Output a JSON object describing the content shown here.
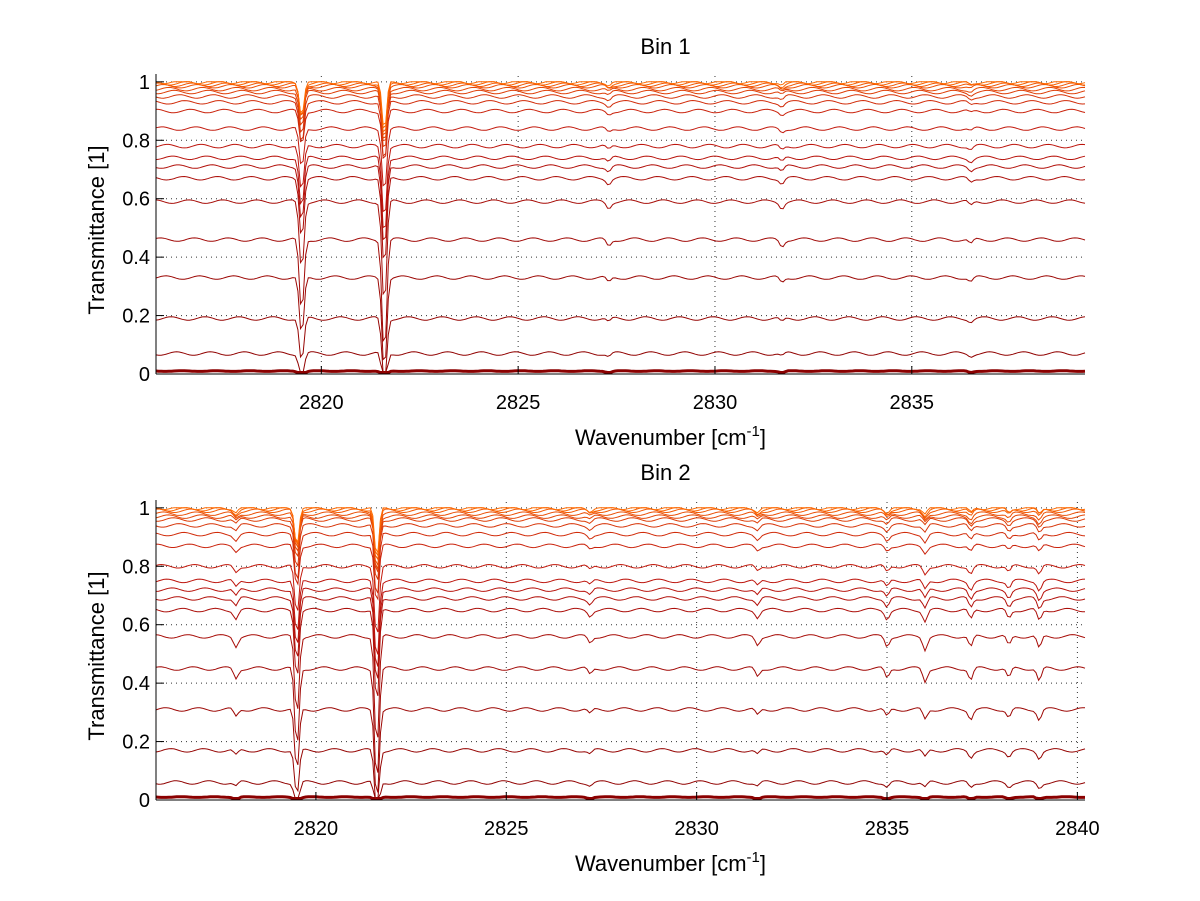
{
  "chart_data": [
    {
      "type": "line",
      "title": "Bin 1",
      "xlabel": "Wavenumber [cm",
      "xlabel_superscript": "-1",
      "xlabel_suffix": "]",
      "ylabel": "Transmittance [1]",
      "xlim": [
        2815.8,
        2839.4
      ],
      "ylim": [
        0,
        1.02
      ],
      "xticks": [
        "2820",
        "2825",
        "2830",
        "2835"
      ],
      "yticks": [
        "0",
        "0.2",
        "0.4",
        "0.6",
        "0.8",
        "1"
      ],
      "grid": "dotted",
      "legend": "none",
      "series": [
        {
          "values": [
            0.01
          ]
        },
        {
          "values": [
            0.07
          ]
        },
        {
          "values": [
            0.19
          ]
        },
        {
          "values": [
            0.33
          ]
        },
        {
          "values": [
            0.46
          ]
        },
        {
          "values": [
            0.59
          ]
        },
        {
          "values": [
            0.67
          ]
        },
        {
          "values": [
            0.71
          ]
        },
        {
          "values": [
            0.74
          ]
        },
        {
          "values": [
            0.78
          ]
        },
        {
          "values": [
            0.84
          ]
        },
        {
          "values": [
            0.9
          ]
        },
        {
          "values": [
            0.93
          ]
        },
        {
          "values": [
            0.95
          ]
        },
        {
          "values": [
            0.965
          ]
        },
        {
          "values": [
            0.975
          ]
        },
        {
          "values": [
            0.985
          ]
        },
        {
          "values": [
            0.99
          ]
        },
        {
          "values": [
            0.995
          ]
        },
        {
          "values": [
            1.0
          ]
        }
      ],
      "absorption_lines": [
        {
          "x": 2819.5,
          "depth": 0.45
        },
        {
          "x": 2821.6,
          "depth": 0.7
        },
        {
          "x": 2827.3,
          "depth": 0.04
        },
        {
          "x": 2831.7,
          "depth": 0.04
        },
        {
          "x": 2836.5,
          "depth": 0.03
        }
      ]
    },
    {
      "type": "line",
      "title": "Bin 2",
      "xlabel": "Wavenumber [cm",
      "xlabel_superscript": "-1",
      "xlabel_suffix": "]",
      "ylabel": "Transmittance [1]",
      "xlim": [
        2815.8,
        2840.2
      ],
      "ylim": [
        0,
        1.02
      ],
      "xticks": [
        "2820",
        "2825",
        "2830",
        "2835",
        "2840"
      ],
      "yticks": [
        "0",
        "0.2",
        "0.4",
        "0.6",
        "0.8",
        "1"
      ],
      "grid": "dotted",
      "legend": "none",
      "series": [
        {
          "values": [
            0.01
          ]
        },
        {
          "values": [
            0.06
          ]
        },
        {
          "values": [
            0.17
          ]
        },
        {
          "values": [
            0.31
          ]
        },
        {
          "values": [
            0.45
          ]
        },
        {
          "values": [
            0.56
          ]
        },
        {
          "values": [
            0.65
          ]
        },
        {
          "values": [
            0.69
          ]
        },
        {
          "values": [
            0.72
          ]
        },
        {
          "values": [
            0.75
          ]
        },
        {
          "values": [
            0.8
          ]
        },
        {
          "values": [
            0.87
          ]
        },
        {
          "values": [
            0.91
          ]
        },
        {
          "values": [
            0.94
          ]
        },
        {
          "values": [
            0.96
          ]
        },
        {
          "values": [
            0.97
          ]
        },
        {
          "values": [
            0.98
          ]
        },
        {
          "values": [
            0.99
          ]
        },
        {
          "values": [
            0.995
          ]
        },
        {
          "values": [
            1.0
          ]
        }
      ],
      "absorption_lines": [
        {
          "x": 2817.9,
          "depth": 0.06
        },
        {
          "x": 2819.5,
          "depth": 0.5
        },
        {
          "x": 2821.6,
          "depth": 0.72
        },
        {
          "x": 2827.2,
          "depth": 0.04
        },
        {
          "x": 2831.6,
          "depth": 0.05
        },
        {
          "x": 2835.0,
          "depth": 0.06
        },
        {
          "x": 2836.0,
          "depth": 0.08
        },
        {
          "x": 2837.2,
          "depth": 0.07
        },
        {
          "x": 2838.2,
          "depth": 0.06
        },
        {
          "x": 2839.0,
          "depth": 0.08
        }
      ]
    }
  ],
  "colors": {
    "dark": "#8b0000",
    "mid": "#c0160e",
    "light": "#ff6a00",
    "axis": "#000000",
    "grid": "#333333"
  }
}
